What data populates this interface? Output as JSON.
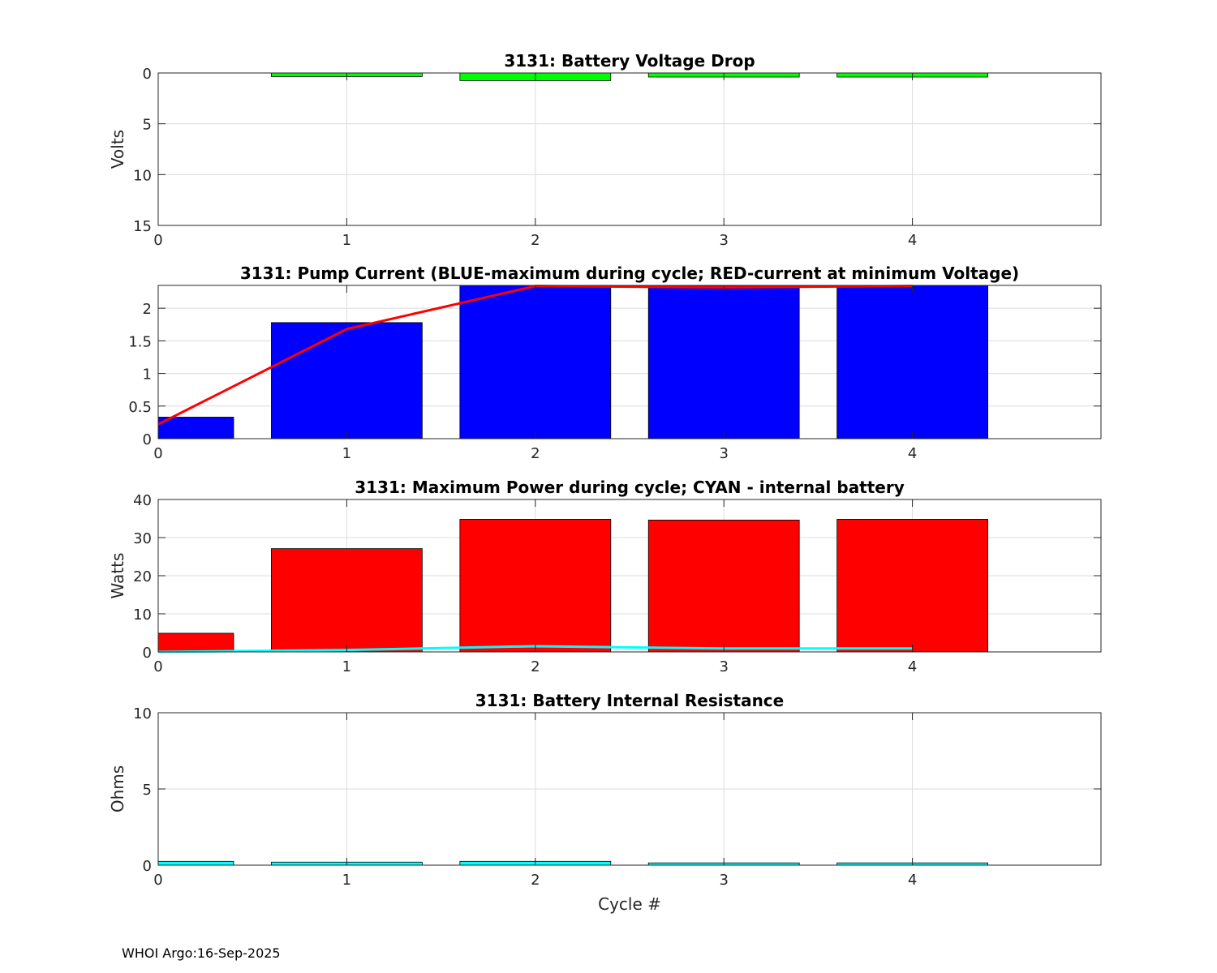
{
  "footer": "WHOI Argo:16-Sep-2025",
  "colors": {
    "voltage_bars": "#00ff00",
    "current_bars": "#0000ff",
    "current_line": "#ff0000",
    "power_bars": "#ff0000",
    "power_line": "#00ffff",
    "resistance_bars": "#00ffff",
    "grid": "#dcdcdc",
    "tick_text": "#262626"
  },
  "chart_data": [
    {
      "type": "bar",
      "title": "3131: Battery Voltage Drop",
      "xlabel": "",
      "ylabel": "Volts",
      "xlim": [
        0,
        5
      ],
      "ylim": [
        0,
        15
      ],
      "y_reversed": true,
      "x_ticks": [
        0,
        1,
        2,
        3,
        4
      ],
      "y_ticks": [
        0,
        5,
        10,
        15
      ],
      "y_tick_labels": [
        "0",
        "5",
        "10",
        "15"
      ],
      "grid": true,
      "categories": [
        0,
        1,
        2,
        3,
        4
      ],
      "values": [
        0.0,
        0.35,
        0.75,
        0.4,
        0.4
      ]
    },
    {
      "type": "bar",
      "title": "3131: Pump Current (BLUE-maximum during cycle; RED-current at minimum Voltage)",
      "xlabel": "",
      "ylabel": "",
      "xlim": [
        0,
        5
      ],
      "ylim": [
        0,
        2.35
      ],
      "y_reversed": false,
      "x_ticks": [
        0,
        1,
        2,
        3,
        4
      ],
      "y_ticks": [
        0,
        0.5,
        1,
        1.5,
        2
      ],
      "y_tick_labels": [
        "0",
        "0.5",
        "1",
        "1.5",
        "2"
      ],
      "grid": true,
      "categories": [
        0,
        1,
        2,
        3,
        4
      ],
      "series": [
        {
          "name": "",
          "kind": "bar",
          "values": [
            0.33,
            1.78,
            2.35,
            2.35,
            2.35
          ]
        },
        {
          "name": "",
          "kind": "line",
          "values": [
            0.22,
            1.68,
            2.34,
            2.32,
            2.34
          ]
        }
      ]
    },
    {
      "type": "bar",
      "title": "3131: Maximum Power during cycle; CYAN - internal battery",
      "xlabel": "",
      "ylabel": "Watts",
      "xlim": [
        0,
        5
      ],
      "ylim": [
        0,
        40
      ],
      "y_reversed": false,
      "x_ticks": [
        0,
        1,
        2,
        3,
        4
      ],
      "y_ticks": [
        0,
        10,
        20,
        30,
        40
      ],
      "y_tick_labels": [
        "0",
        "10",
        "20",
        "30",
        "40"
      ],
      "grid": true,
      "categories": [
        0,
        1,
        2,
        3,
        4
      ],
      "series": [
        {
          "name": "",
          "kind": "bar",
          "values": [
            4.9,
            27.1,
            34.8,
            34.6,
            34.8
          ]
        },
        {
          "name": "",
          "kind": "line",
          "values": [
            0.0,
            0.5,
            1.5,
            0.9,
            0.9
          ]
        }
      ]
    },
    {
      "type": "bar",
      "title": "3131: Battery Internal Resistance",
      "xlabel": "Cycle #",
      "ylabel": "Ohms",
      "xlim": [
        0,
        5
      ],
      "ylim": [
        0,
        10
      ],
      "y_reversed": false,
      "x_ticks": [
        0,
        1,
        2,
        3,
        4
      ],
      "y_ticks": [
        0,
        5,
        10
      ],
      "y_tick_labels": [
        "0",
        "5",
        "10"
      ],
      "grid": true,
      "categories": [
        0,
        1,
        2,
        3,
        4
      ],
      "values": [
        0.25,
        0.2,
        0.25,
        0.15,
        0.15
      ]
    }
  ]
}
